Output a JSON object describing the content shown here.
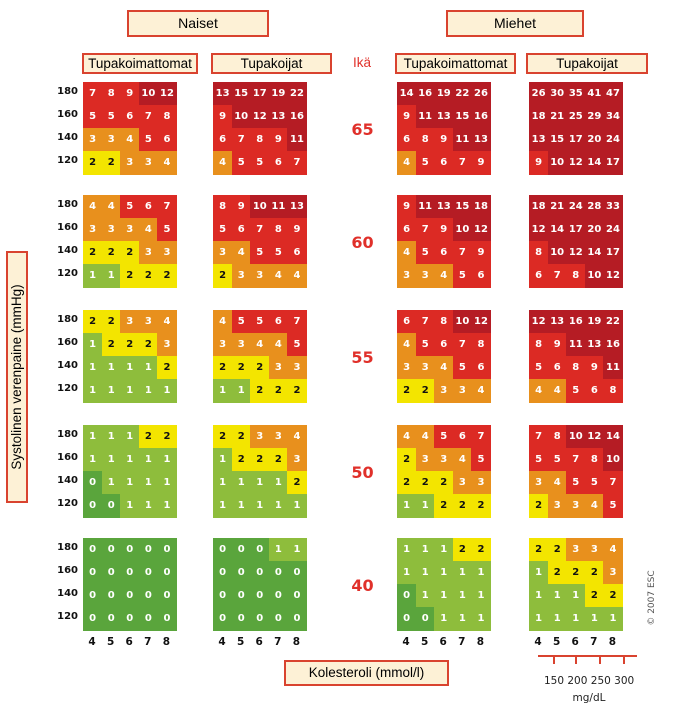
{
  "chart_data": {
    "type": "heatmap",
    "sex_labels": [
      "Naiset",
      "Miehet"
    ],
    "group_labels": [
      "Tupakoimattomat",
      "Tupakoijat",
      "Tupakoimattomat",
      "Tupakoijat"
    ],
    "age_header": "Ikä",
    "ages": [
      "65",
      "60",
      "55",
      "50",
      "40"
    ],
    "systolic": [
      "180",
      "160",
      "140",
      "120"
    ],
    "cholesterol": [
      "4",
      "5",
      "6",
      "7",
      "8"
    ],
    "ylabel": "Systolinen verenpaine (mmHg)",
    "xlabel": "Kolesteroli (mmol/l)",
    "mg_ticks": "150 200 250 300",
    "mg_unit": "mg/dL",
    "copyright": "© 2007 ESC",
    "colors": {
      "green": "#5aa53c",
      "light_green": "#8ebd3c",
      "yellow": "#f3e500",
      "orange": "#e8901d",
      "red": "#dc2a24",
      "dark_red": "#b51c24"
    },
    "grids": [
      [
        [
          [
            7,
            8,
            9,
            10,
            12
          ],
          [
            5,
            5,
            6,
            7,
            8
          ],
          [
            3,
            3,
            4,
            5,
            6
          ],
          [
            2,
            2,
            3,
            3,
            4
          ]
        ],
        [
          [
            13,
            15,
            17,
            19,
            22
          ],
          [
            9,
            10,
            12,
            13,
            16
          ],
          [
            6,
            7,
            8,
            9,
            11
          ],
          [
            4,
            5,
            5,
            6,
            7
          ]
        ],
        [
          [
            14,
            16,
            19,
            22,
            26
          ],
          [
            9,
            11,
            13,
            15,
            16
          ],
          [
            6,
            8,
            9,
            11,
            13
          ],
          [
            4,
            5,
            6,
            7,
            9
          ]
        ],
        [
          [
            26,
            30,
            35,
            41,
            47
          ],
          [
            18,
            21,
            25,
            29,
            34
          ],
          [
            13,
            15,
            17,
            20,
            24
          ],
          [
            9,
            10,
            12,
            14,
            17
          ]
        ]
      ],
      [
        [
          [
            4,
            4,
            5,
            6,
            7
          ],
          [
            3,
            3,
            3,
            4,
            5
          ],
          [
            2,
            2,
            2,
            3,
            3
          ],
          [
            1,
            1,
            2,
            2,
            2
          ]
        ],
        [
          [
            8,
            9,
            10,
            11,
            13
          ],
          [
            5,
            6,
            7,
            8,
            9
          ],
          [
            3,
            4,
            5,
            5,
            6
          ],
          [
            2,
            3,
            3,
            4,
            4
          ]
        ],
        [
          [
            9,
            11,
            13,
            15,
            18
          ],
          [
            6,
            7,
            9,
            10,
            12
          ],
          [
            4,
            5,
            6,
            7,
            9
          ],
          [
            3,
            3,
            4,
            5,
            6
          ]
        ],
        [
          [
            18,
            21,
            24,
            28,
            33
          ],
          [
            12,
            14,
            17,
            20,
            24
          ],
          [
            8,
            10,
            12,
            14,
            17
          ],
          [
            6,
            7,
            8,
            10,
            12
          ]
        ]
      ],
      [
        [
          [
            2,
            2,
            3,
            3,
            4
          ],
          [
            1,
            2,
            2,
            2,
            3
          ],
          [
            1,
            1,
            1,
            1,
            2
          ],
          [
            1,
            1,
            1,
            1,
            1
          ]
        ],
        [
          [
            4,
            5,
            5,
            6,
            7
          ],
          [
            3,
            3,
            4,
            4,
            5
          ],
          [
            2,
            2,
            2,
            3,
            3
          ],
          [
            1,
            1,
            2,
            2,
            2
          ]
        ],
        [
          [
            6,
            7,
            8,
            10,
            12
          ],
          [
            4,
            5,
            6,
            7,
            8
          ],
          [
            3,
            3,
            4,
            5,
            6
          ],
          [
            2,
            2,
            3,
            3,
            4
          ]
        ],
        [
          [
            12,
            13,
            16,
            19,
            22
          ],
          [
            8,
            9,
            11,
            13,
            16
          ],
          [
            5,
            6,
            8,
            9,
            11
          ],
          [
            4,
            4,
            5,
            6,
            8
          ]
        ]
      ],
      [
        [
          [
            1,
            1,
            1,
            2,
            2
          ],
          [
            1,
            1,
            1,
            1,
            1
          ],
          [
            0,
            1,
            1,
            1,
            1
          ],
          [
            0,
            0,
            1,
            1,
            1
          ]
        ],
        [
          [
            2,
            2,
            3,
            3,
            4
          ],
          [
            1,
            2,
            2,
            2,
            3
          ],
          [
            1,
            1,
            1,
            1,
            2
          ],
          [
            1,
            1,
            1,
            1,
            1
          ]
        ],
        [
          [
            4,
            4,
            5,
            6,
            7
          ],
          [
            2,
            3,
            3,
            4,
            5
          ],
          [
            2,
            2,
            2,
            3,
            3
          ],
          [
            1,
            1,
            2,
            2,
            2
          ]
        ],
        [
          [
            7,
            8,
            10,
            12,
            14
          ],
          [
            5,
            5,
            7,
            8,
            10
          ],
          [
            3,
            4,
            5,
            5,
            7
          ],
          [
            2,
            3,
            3,
            4,
            5
          ]
        ]
      ],
      [
        [
          [
            0,
            0,
            0,
            0,
            0
          ],
          [
            0,
            0,
            0,
            0,
            0
          ],
          [
            0,
            0,
            0,
            0,
            0
          ],
          [
            0,
            0,
            0,
            0,
            0
          ]
        ],
        [
          [
            0,
            0,
            0,
            1,
            1
          ],
          [
            0,
            0,
            0,
            0,
            0
          ],
          [
            0,
            0,
            0,
            0,
            0
          ],
          [
            0,
            0,
            0,
            0,
            0
          ]
        ],
        [
          [
            1,
            1,
            1,
            2,
            2
          ],
          [
            1,
            1,
            1,
            1,
            1
          ],
          [
            0,
            1,
            1,
            1,
            1
          ],
          [
            0,
            0,
            1,
            1,
            1
          ]
        ],
        [
          [
            2,
            2,
            3,
            3,
            4
          ],
          [
            1,
            2,
            2,
            2,
            3
          ],
          [
            1,
            1,
            1,
            2,
            2
          ],
          [
            1,
            1,
            1,
            1,
            1
          ]
        ]
      ]
    ]
  }
}
